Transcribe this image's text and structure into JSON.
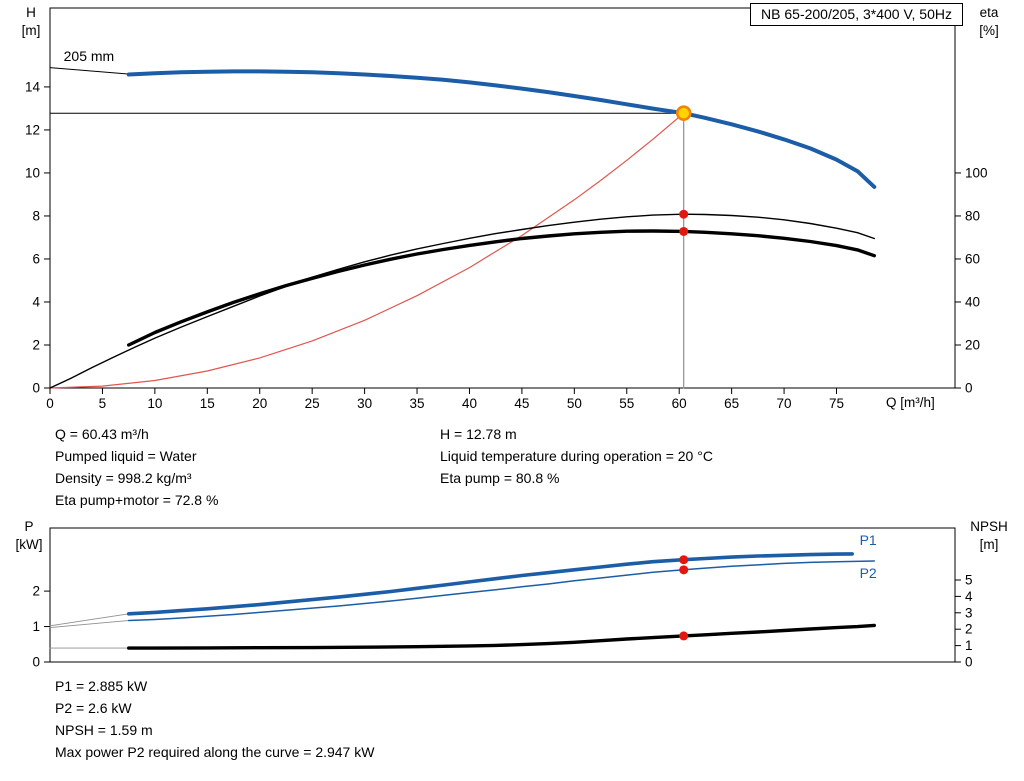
{
  "header": {
    "title": "NB 65-200/205, 3*400 V, 50Hz"
  },
  "axes_corner_labels": {
    "top_left": [
      "H",
      "[m]"
    ],
    "top_right": [
      "eta",
      "[%]"
    ],
    "bottom_left": [
      "P",
      "[kW]"
    ],
    "bottom_right": [
      "NPSH",
      "[m]"
    ],
    "x_axis": "Q [m³/h]"
  },
  "info_block": {
    "left": [
      "Q = 60.43 m³/h",
      "Pumped liquid = Water",
      "Density = 998.2 kg/m³",
      "Eta pump+motor = 72.8 %"
    ],
    "right": [
      "H = 12.78 m",
      "Liquid temperature during operation = 20 °C",
      "Eta pump = 80.8 %"
    ]
  },
  "results_block": [
    "P1 = 2.885 kW",
    "P2 = 2.6 kW",
    "NPSH = 1.59 m",
    "Max power P2 required along the curve = 2.947 kW"
  ],
  "colors": {
    "blue": "#1c5da8",
    "black": "#000000",
    "red": "#e0564e",
    "gray": "#8f8f8f",
    "dot_red": "#e3170f",
    "duty_fill": "#ffd400",
    "duty_ring": "#f08300"
  },
  "chart_data": [
    {
      "id": "qh-chart",
      "type": "line",
      "xlabel": "Q [m³/h]",
      "ylabel_left": "H [m]",
      "ylabel_right": "eta [%]",
      "xlim": [
        0,
        86.3
      ],
      "ylim_left": [
        0,
        17.67
      ],
      "ylim_right": [
        0,
        176.7
      ],
      "x_ticks": [
        0,
        5,
        10,
        15,
        20,
        25,
        30,
        35,
        40,
        45,
        50,
        55,
        60,
        65,
        70,
        75
      ],
      "show_x_tick_labels": true,
      "y_ticks": [
        0,
        2,
        4,
        6,
        8,
        10,
        12,
        14
      ],
      "y2_ticks": [
        0,
        20,
        40,
        60,
        80,
        100
      ],
      "duty_point": {
        "Q": 60.43,
        "H": 12.78,
        "eta_pump": 80.8,
        "eta_pump_motor": 72.8
      },
      "series": [
        {
          "id": "trim-leader-line",
          "color": "black",
          "width": 1,
          "axis": "left",
          "points": [
            [
              0,
              14.9
            ],
            [
              7.5,
              14.6
            ]
          ]
        },
        {
          "id": "duty-parabola",
          "color": "red",
          "width": 1.2,
          "axis": "left",
          "points": [
            [
              0,
              0
            ],
            [
              5,
              0.09
            ],
            [
              10,
              0.35
            ],
            [
              15,
              0.79
            ],
            [
              20,
              1.4
            ],
            [
              25,
              2.19
            ],
            [
              30,
              3.15
            ],
            [
              35,
              4.29
            ],
            [
              40,
              5.6
            ],
            [
              45,
              7.09
            ],
            [
              50,
              8.75
            ],
            [
              52.5,
              9.65
            ],
            [
              55,
              10.59
            ],
            [
              57.5,
              11.57
            ],
            [
              60.43,
              12.78
            ]
          ]
        },
        {
          "id": "duty-vline",
          "color": "gray",
          "width": 1.2,
          "axis": "left",
          "points": [
            [
              60.43,
              0
            ],
            [
              60.43,
              12.78
            ]
          ]
        },
        {
          "id": "duty-hline",
          "color": "black",
          "width": 1,
          "axis": "left",
          "points": [
            [
              0,
              12.78
            ],
            [
              60.43,
              12.78
            ]
          ]
        },
        {
          "id": "eta-pump-curve",
          "color": "black",
          "width": 1.4,
          "axis": "right",
          "points": [
            [
              0,
              0
            ],
            [
              2,
              4.5
            ],
            [
              4,
              9.5
            ],
            [
              6,
              14.2
            ],
            [
              8,
              18.8
            ],
            [
              10,
              23.2
            ],
            [
              12.5,
              28.3
            ],
            [
              15,
              33.2
            ],
            [
              17.5,
              38
            ],
            [
              20,
              42.8
            ],
            [
              22.5,
              47.2
            ],
            [
              25,
              51.5
            ],
            [
              27.5,
              55.2
            ],
            [
              30,
              58.7
            ],
            [
              32.5,
              61.8
            ],
            [
              35,
              64.7
            ],
            [
              37.5,
              67.2
            ],
            [
              40,
              69.6
            ],
            [
              42.5,
              71.8
            ],
            [
              45,
              73.7
            ],
            [
              47.5,
              75.5
            ],
            [
              50,
              77.1
            ],
            [
              52.5,
              78.5
            ],
            [
              55,
              79.6
            ],
            [
              57.5,
              80.4
            ],
            [
              60.43,
              80.8
            ],
            [
              62.5,
              80.7
            ],
            [
              65,
              80.2
            ],
            [
              67.5,
              79.4
            ],
            [
              70,
              78.2
            ],
            [
              72.5,
              76.5
            ],
            [
              75,
              74.3
            ],
            [
              77,
              72.2
            ],
            [
              78.6,
              69.5
            ]
          ]
        },
        {
          "id": "eta-pump-motor-curve",
          "color": "black",
          "width": 3.4,
          "axis": "right",
          "points": [
            [
              7.5,
              20
            ],
            [
              10,
              25.8
            ],
            [
              12.5,
              30.8
            ],
            [
              15,
              35.4
            ],
            [
              17.5,
              39.8
            ],
            [
              20,
              43.8
            ],
            [
              22.5,
              47.6
            ],
            [
              25,
              51
            ],
            [
              27.5,
              54.2
            ],
            [
              30,
              57.2
            ],
            [
              32.5,
              59.9
            ],
            [
              35,
              62.3
            ],
            [
              37.5,
              64.4
            ],
            [
              40,
              66.3
            ],
            [
              42.5,
              68
            ],
            [
              45,
              69.5
            ],
            [
              47.5,
              70.7
            ],
            [
              50,
              71.7
            ],
            [
              52.5,
              72.4
            ],
            [
              55,
              72.9
            ],
            [
              57.5,
              73.0
            ],
            [
              60.43,
              72.8
            ],
            [
              62.5,
              72.4
            ],
            [
              65,
              71.7
            ],
            [
              67.5,
              70.8
            ],
            [
              70,
              69.6
            ],
            [
              72.5,
              68.1
            ],
            [
              75,
              66.2
            ],
            [
              77,
              64.2
            ],
            [
              78.6,
              61.5
            ]
          ]
        },
        {
          "id": "pump-curve-205mm",
          "color": "blue",
          "width": 4,
          "axis": "left",
          "points": [
            [
              7.5,
              14.58
            ],
            [
              10,
              14.64
            ],
            [
              12.5,
              14.68
            ],
            [
              15,
              14.71
            ],
            [
              17.5,
              14.72
            ],
            [
              20,
              14.72
            ],
            [
              22.5,
              14.71
            ],
            [
              25,
              14.68
            ],
            [
              27.5,
              14.64
            ],
            [
              30,
              14.58
            ],
            [
              32.5,
              14.51
            ],
            [
              35,
              14.43
            ],
            [
              37.5,
              14.33
            ],
            [
              40,
              14.21
            ],
            [
              42.5,
              14.07
            ],
            [
              45,
              13.92
            ],
            [
              47.5,
              13.76
            ],
            [
              50,
              13.58
            ],
            [
              52.5,
              13.39
            ],
            [
              55,
              13.19
            ],
            [
              57.5,
              12.99
            ],
            [
              60.43,
              12.78
            ],
            [
              62.5,
              12.56
            ],
            [
              65,
              12.26
            ],
            [
              67.5,
              11.93
            ],
            [
              70,
              11.56
            ],
            [
              72.5,
              11.14
            ],
            [
              75,
              10.62
            ],
            [
              77,
              10.08
            ],
            [
              78.6,
              9.35
            ]
          ]
        }
      ],
      "markers": [
        {
          "x": 60.43,
          "y": 12.78,
          "axis": "left",
          "type": "duty"
        },
        {
          "x": 60.43,
          "y": 80.8,
          "axis": "right",
          "type": "dot"
        },
        {
          "x": 60.43,
          "y": 72.8,
          "axis": "right",
          "type": "dot"
        }
      ],
      "annotations": [
        {
          "id": "impeller-trim-label",
          "text": "205 mm",
          "x": 1.3,
          "y": 15.2,
          "axis": "left",
          "color": "black"
        }
      ]
    },
    {
      "id": "power-npsh-chart",
      "type": "line",
      "ylabel_left": "P [kW]",
      "ylabel_right": "NPSH [m]",
      "xlim": [
        0,
        86.3
      ],
      "ylim_left": [
        0,
        3.78
      ],
      "ylim_right": [
        0,
        8.17
      ],
      "x_ticks": [],
      "show_x_tick_labels": false,
      "y_ticks": [
        0,
        1,
        2
      ],
      "y2_ticks": [
        0,
        1,
        2,
        3,
        4,
        5
      ],
      "duty_point": {
        "Q": 60.43,
        "P1": 2.885,
        "P2": 2.6,
        "NPSH": 1.59
      },
      "series": [
        {
          "id": "p1-leader",
          "color": "gray",
          "width": 0.9,
          "axis": "left",
          "points": [
            [
              0,
              1.02
            ],
            [
              7.5,
              1.36
            ]
          ]
        },
        {
          "id": "p2-leader",
          "color": "gray",
          "width": 0.9,
          "axis": "left",
          "points": [
            [
              0,
              0.97
            ],
            [
              7.5,
              1.17
            ]
          ]
        },
        {
          "id": "npsh-leader",
          "color": "gray",
          "width": 0.9,
          "axis": "right",
          "points": [
            [
              0,
              0.85
            ],
            [
              7.5,
              0.85
            ]
          ]
        },
        {
          "id": "p2-curve",
          "color": "blue",
          "width": 1.5,
          "axis": "left",
          "points": [
            [
              7.5,
              1.17
            ],
            [
              10,
              1.2
            ],
            [
              12.5,
              1.24
            ],
            [
              15,
              1.29
            ],
            [
              17.5,
              1.34
            ],
            [
              20,
              1.4
            ],
            [
              22.5,
              1.46
            ],
            [
              25,
              1.52
            ],
            [
              27.5,
              1.58
            ],
            [
              30,
              1.65
            ],
            [
              32.5,
              1.72
            ],
            [
              35,
              1.8
            ],
            [
              37.5,
              1.88
            ],
            [
              40,
              1.96
            ],
            [
              42.5,
              2.04
            ],
            [
              45,
              2.12
            ],
            [
              47.5,
              2.2
            ],
            [
              50,
              2.29
            ],
            [
              52.5,
              2.37
            ],
            [
              55,
              2.45
            ],
            [
              57.5,
              2.53
            ],
            [
              60.43,
              2.6
            ],
            [
              62.5,
              2.65
            ],
            [
              65,
              2.7
            ],
            [
              67.5,
              2.74
            ],
            [
              70,
              2.78
            ],
            [
              72.5,
              2.81
            ],
            [
              75,
              2.83
            ],
            [
              78.6,
              2.85
            ]
          ]
        },
        {
          "id": "p1-curve",
          "color": "blue",
          "width": 3.6,
          "axis": "left",
          "points": [
            [
              7.5,
              1.36
            ],
            [
              10,
              1.4
            ],
            [
              12.5,
              1.45
            ],
            [
              15,
              1.5
            ],
            [
              17.5,
              1.56
            ],
            [
              20,
              1.62
            ],
            [
              22.5,
              1.69
            ],
            [
              25,
              1.76
            ],
            [
              27.5,
              1.83
            ],
            [
              30,
              1.91
            ],
            [
              32.5,
              1.99
            ],
            [
              35,
              2.08
            ],
            [
              37.5,
              2.17
            ],
            [
              40,
              2.26
            ],
            [
              42.5,
              2.35
            ],
            [
              45,
              2.44
            ],
            [
              47.5,
              2.52
            ],
            [
              50,
              2.6
            ],
            [
              52.5,
              2.68
            ],
            [
              55,
              2.76
            ],
            [
              57.5,
              2.83
            ],
            [
              60.43,
              2.885
            ],
            [
              62.5,
              2.92
            ],
            [
              65,
              2.96
            ],
            [
              67.5,
              2.99
            ],
            [
              70,
              3.01
            ],
            [
              72.5,
              3.03
            ],
            [
              75,
              3.045
            ],
            [
              76.5,
              3.05
            ]
          ]
        },
        {
          "id": "npsh-curve",
          "color": "black",
          "width": 3.4,
          "axis": "right",
          "points": [
            [
              7.5,
              0.85
            ],
            [
              10,
              0.85
            ],
            [
              15,
              0.86
            ],
            [
              20,
              0.87
            ],
            [
              25,
              0.88
            ],
            [
              30,
              0.9
            ],
            [
              35,
              0.93
            ],
            [
              40,
              0.98
            ],
            [
              42.5,
              1.01
            ],
            [
              45,
              1.06
            ],
            [
              47.5,
              1.12
            ],
            [
              50,
              1.2
            ],
            [
              52.5,
              1.3
            ],
            [
              55,
              1.4
            ],
            [
              57.5,
              1.49
            ],
            [
              60.43,
              1.59
            ],
            [
              62.5,
              1.66
            ],
            [
              65,
              1.75
            ],
            [
              67.5,
              1.83
            ],
            [
              70,
              1.92
            ],
            [
              72.5,
              2.01
            ],
            [
              75,
              2.1
            ],
            [
              77,
              2.16
            ],
            [
              78.6,
              2.23
            ]
          ]
        }
      ],
      "markers": [
        {
          "x": 60.43,
          "y": 2.885,
          "axis": "left",
          "type": "dot"
        },
        {
          "x": 60.43,
          "y": 2.6,
          "axis": "left",
          "type": "dot"
        },
        {
          "x": 60.43,
          "y": 1.59,
          "axis": "right",
          "type": "dot"
        }
      ],
      "annotations": [
        {
          "id": "p1-label",
          "text": "P1",
          "x": 77.2,
          "y": 3.3,
          "axis": "left",
          "color": "blue"
        },
        {
          "id": "p2-label",
          "text": "P2",
          "x": 77.2,
          "y": 2.37,
          "axis": "left",
          "color": "blue"
        }
      ]
    }
  ]
}
